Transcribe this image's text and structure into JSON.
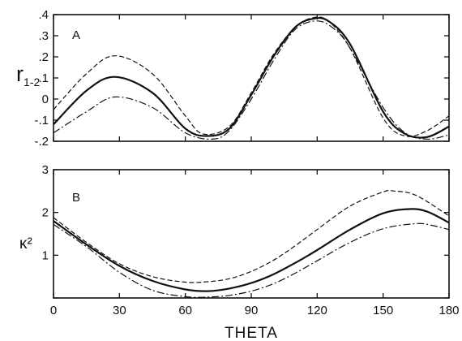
{
  "chart_data": [
    {
      "type": "line",
      "panel_label": "A",
      "ylabel_main": "r",
      "ylabel_sub": "1-2",
      "xlim": [
        0,
        180
      ],
      "ylim": [
        -0.2,
        0.4
      ],
      "yticks": [
        -0.2,
        -0.1,
        0,
        0.1,
        0.2,
        0.3,
        0.4
      ],
      "ytick_labels": [
        "-.2",
        "-.1",
        "0",
        ".1",
        ".2",
        ".3",
        ".4"
      ],
      "grid": false,
      "series": [
        {
          "style": "solid",
          "x": [
            0,
            15,
            28,
            45,
            60,
            70,
            80,
            90,
            100,
            110,
            118,
            125,
            135,
            150,
            160,
            170,
            180
          ],
          "y": [
            -0.12,
            0.04,
            0.105,
            0.03,
            -0.14,
            -0.175,
            -0.14,
            0.02,
            0.2,
            0.34,
            0.38,
            0.37,
            0.26,
            -0.06,
            -0.165,
            -0.18,
            -0.13
          ]
        },
        {
          "style": "dashed",
          "x": [
            0,
            15,
            28,
            45,
            60,
            68,
            80,
            90,
            100,
            110,
            118,
            125,
            135,
            150,
            160,
            170,
            180
          ],
          "y": [
            -0.05,
            0.12,
            0.205,
            0.12,
            -0.08,
            -0.165,
            -0.13,
            0.03,
            0.21,
            0.34,
            0.385,
            0.37,
            0.24,
            -0.09,
            -0.175,
            -0.15,
            -0.08
          ]
        },
        {
          "style": "dashdot",
          "x": [
            0,
            15,
            28,
            45,
            60,
            72,
            80,
            90,
            100,
            110,
            120,
            128,
            135,
            150,
            160,
            170,
            180
          ],
          "y": [
            -0.16,
            -0.06,
            0.01,
            -0.04,
            -0.16,
            -0.19,
            -0.15,
            0.0,
            0.18,
            0.33,
            0.37,
            0.33,
            0.24,
            -0.04,
            -0.16,
            -0.19,
            -0.17
          ]
        }
      ]
    },
    {
      "type": "line",
      "panel_label": "B",
      "ylabel": "κ²",
      "xlabel": "THETA",
      "xlim": [
        0,
        180
      ],
      "ylim": [
        0,
        3
      ],
      "xticks": [
        0,
        30,
        60,
        90,
        120,
        150,
        180
      ],
      "xtick_labels": [
        "0",
        "30",
        "60",
        "90",
        "120",
        "150",
        "180"
      ],
      "yticks": [
        0,
        1,
        2,
        3
      ],
      "ytick_labels": [
        "1",
        "2",
        "3"
      ],
      "grid": false,
      "series": [
        {
          "style": "solid",
          "x": [
            0,
            15,
            30,
            45,
            60,
            70,
            80,
            90,
            100,
            110,
            120,
            135,
            150,
            162,
            170,
            180
          ],
          "y": [
            1.8,
            1.25,
            0.75,
            0.4,
            0.2,
            0.16,
            0.22,
            0.35,
            0.55,
            0.82,
            1.12,
            1.6,
            1.98,
            2.08,
            2.02,
            1.76
          ]
        },
        {
          "style": "dashed",
          "x": [
            0,
            15,
            30,
            45,
            60,
            70,
            80,
            90,
            100,
            110,
            120,
            135,
            150,
            155,
            165,
            180
          ],
          "y": [
            1.88,
            1.3,
            0.8,
            0.5,
            0.37,
            0.38,
            0.45,
            0.62,
            0.88,
            1.22,
            1.6,
            2.15,
            2.48,
            2.5,
            2.4,
            1.92
          ]
        },
        {
          "style": "dashdot",
          "x": [
            0,
            15,
            30,
            45,
            60,
            70,
            80,
            90,
            100,
            110,
            120,
            135,
            150,
            165,
            172,
            180
          ],
          "y": [
            1.72,
            1.2,
            0.6,
            0.18,
            0.03,
            0.02,
            0.06,
            0.16,
            0.33,
            0.58,
            0.87,
            1.3,
            1.62,
            1.74,
            1.7,
            1.6
          ]
        }
      ]
    }
  ]
}
